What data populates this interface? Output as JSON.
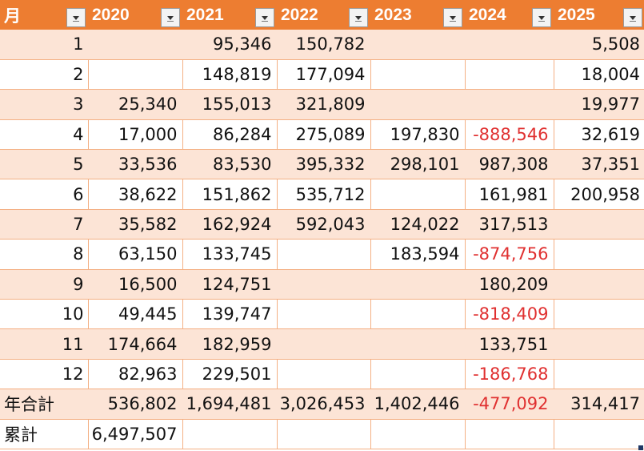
{
  "header": {
    "month_label": "月",
    "years": [
      "2020",
      "2021",
      "2022",
      "2023",
      "2024",
      "2025"
    ],
    "filter_icon": "dropdown-filter-icon"
  },
  "rows": [
    {
      "label": "1",
      "values": [
        "",
        "95,346",
        "150,782",
        "",
        "",
        "5,508"
      ]
    },
    {
      "label": "2",
      "values": [
        "",
        "148,819",
        "177,094",
        "",
        "",
        "18,004"
      ]
    },
    {
      "label": "3",
      "values": [
        "25,340",
        "155,013",
        "321,809",
        "",
        "",
        "19,977"
      ]
    },
    {
      "label": "4",
      "values": [
        "17,000",
        "86,284",
        "275,089",
        "197,830",
        "-888,546",
        "32,619"
      ]
    },
    {
      "label": "5",
      "values": [
        "33,536",
        "83,530",
        "395,332",
        "298,101",
        "987,308",
        "37,351"
      ]
    },
    {
      "label": "6",
      "values": [
        "38,622",
        "151,862",
        "535,712",
        "",
        "161,981",
        "200,958"
      ]
    },
    {
      "label": "7",
      "values": [
        "35,582",
        "162,924",
        "592,043",
        "124,022",
        "317,513",
        ""
      ]
    },
    {
      "label": "8",
      "values": [
        "63,150",
        "133,745",
        "",
        "183,594",
        "-874,756",
        ""
      ]
    },
    {
      "label": "9",
      "values": [
        "16,500",
        "124,751",
        "",
        "",
        "180,209",
        ""
      ]
    },
    {
      "label": "10",
      "values": [
        "49,445",
        "139,747",
        "",
        "",
        "-818,409",
        ""
      ]
    },
    {
      "label": "11",
      "values": [
        "174,664",
        "182,959",
        "",
        "",
        "133,751",
        ""
      ]
    },
    {
      "label": "12",
      "values": [
        "82,963",
        "229,501",
        "",
        "",
        "-186,768",
        ""
      ]
    }
  ],
  "total_row": {
    "label": "年合計",
    "values": [
      "536,802",
      "1,694,481",
      "3,026,453",
      "1,402,446",
      "-477,092",
      "314,417"
    ]
  },
  "cumulative_row": {
    "label": "累計",
    "values": [
      "6,497,507",
      "",
      "",
      "",
      "",
      ""
    ]
  },
  "colors": {
    "header_bg": "#ED7D31",
    "band_bg": "#FCE4D6",
    "negative_text": "#E03030",
    "grid_line": "#F4B084"
  }
}
